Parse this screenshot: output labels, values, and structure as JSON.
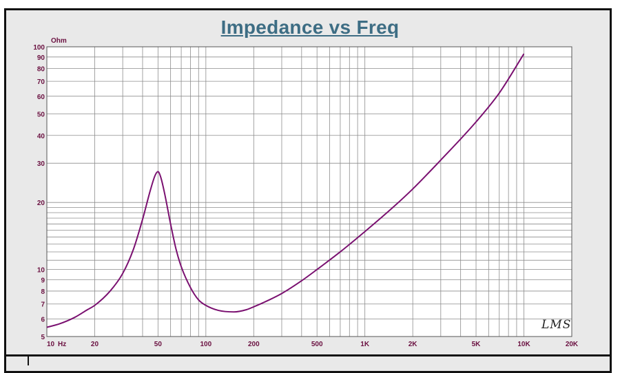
{
  "colors": {
    "title": "#3d6d84",
    "axis_text": "#6a1040",
    "curve": "#7a1070",
    "grid": "#8c8c8c",
    "plot_bg": "#ffffff",
    "frame_bg": "#e9e9e9"
  },
  "logo_text": "LMS",
  "chart_data": {
    "type": "line",
    "title": "Impedance vs Freq",
    "ylabel": "Ohm",
    "xlabel": "Hz",
    "xscale": "log",
    "yscale": "log",
    "xlim": [
      10,
      20000
    ],
    "ylim": [
      5,
      100
    ],
    "grid": true,
    "x_tick_labels": [
      {
        "v": 10,
        "t": "10"
      },
      {
        "v": 20,
        "t": "20"
      },
      {
        "v": 50,
        "t": "50"
      },
      {
        "v": 100,
        "t": "100"
      },
      {
        "v": 200,
        "t": "200"
      },
      {
        "v": 500,
        "t": "500"
      },
      {
        "v": 1000,
        "t": "1K"
      },
      {
        "v": 2000,
        "t": "2K"
      },
      {
        "v": 5000,
        "t": "5K"
      },
      {
        "v": 10000,
        "t": "10K"
      },
      {
        "v": 20000,
        "t": "20K"
      }
    ],
    "y_tick_labels": [
      {
        "v": 5,
        "t": "5"
      },
      {
        "v": 6,
        "t": "6"
      },
      {
        "v": 7,
        "t": "7"
      },
      {
        "v": 8,
        "t": "8"
      },
      {
        "v": 9,
        "t": "9"
      },
      {
        "v": 10,
        "t": "10"
      },
      {
        "v": 20,
        "t": "20"
      },
      {
        "v": 30,
        "t": "30"
      },
      {
        "v": 40,
        "t": "40"
      },
      {
        "v": 50,
        "t": "50"
      },
      {
        "v": 60,
        "t": "60"
      },
      {
        "v": 70,
        "t": "70"
      },
      {
        "v": 80,
        "t": "80"
      },
      {
        "v": 90,
        "t": "90"
      },
      {
        "v": 100,
        "t": "100"
      }
    ],
    "series": [
      {
        "x": [
          10,
          12,
          15,
          18,
          20,
          25,
          30,
          35,
          40,
          45,
          48,
          50,
          52,
          55,
          60,
          65,
          70,
          80,
          90,
          100,
          120,
          150,
          180,
          200,
          250,
          300,
          400,
          500,
          700,
          1000,
          1500,
          2000,
          3000,
          5000,
          7000,
          10000
        ],
        "y": [
          5.5,
          5.7,
          6.1,
          6.6,
          6.9,
          8.0,
          9.6,
          12.3,
          16.8,
          23.0,
          26.5,
          27.5,
          26.0,
          22.0,
          16.0,
          12.3,
          10.3,
          8.3,
          7.3,
          6.9,
          6.55,
          6.45,
          6.6,
          6.8,
          7.3,
          7.8,
          8.9,
          10.0,
          12.0,
          14.8,
          19.0,
          23.0,
          31.0,
          46.0,
          62.0,
          93.0
        ]
      }
    ]
  }
}
